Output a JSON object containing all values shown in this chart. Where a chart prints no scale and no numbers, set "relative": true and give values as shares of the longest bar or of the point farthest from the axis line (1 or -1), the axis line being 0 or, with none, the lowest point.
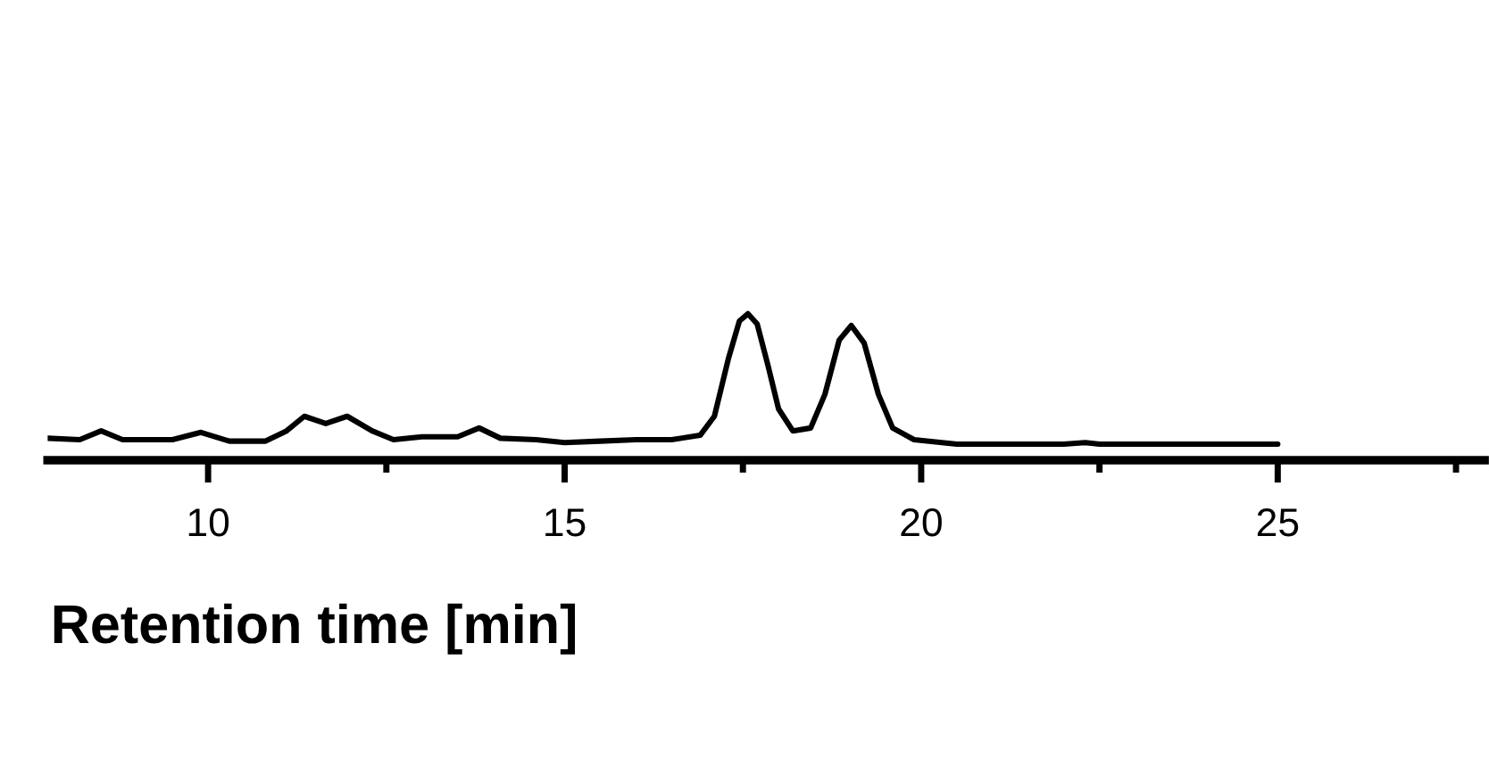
{
  "chart_data": {
    "type": "line",
    "relative": true,
    "xlabel": "Retention time [min]",
    "x": [
      7.75,
      8.2,
      8.5,
      8.8,
      9.5,
      9.9,
      10.3,
      10.8,
      11.1,
      11.35,
      11.65,
      11.95,
      12.3,
      12.6,
      13.0,
      13.5,
      13.8,
      14.1,
      14.6,
      15.0,
      15.5,
      16.0,
      16.5,
      16.9,
      17.1,
      17.3,
      17.45,
      17.57,
      17.7,
      17.85,
      18.0,
      18.2,
      18.45,
      18.65,
      18.85,
      19.02,
      19.2,
      19.4,
      19.6,
      19.9,
      20.5,
      22.0,
      22.3,
      22.5,
      25.0
    ],
    "series": [
      {
        "color": "#000000",
        "values": [
          0.15,
          0.14,
          0.2,
          0.14,
          0.14,
          0.19,
          0.13,
          0.13,
          0.2,
          0.3,
          0.25,
          0.3,
          0.2,
          0.14,
          0.16,
          0.16,
          0.22,
          0.15,
          0.14,
          0.12,
          0.13,
          0.14,
          0.14,
          0.17,
          0.3,
          0.7,
          0.95,
          1.0,
          0.93,
          0.65,
          0.35,
          0.2,
          0.22,
          0.45,
          0.82,
          0.92,
          0.8,
          0.45,
          0.22,
          0.14,
          0.11,
          0.11,
          0.12,
          0.11,
          0.11
        ]
      }
    ],
    "xlim": [
      7.75,
      27.9
    ],
    "xticks": [
      10,
      {
        "value": 12.5,
        "label": null
      },
      15,
      {
        "value": 17.5,
        "label": null
      },
      20,
      {
        "value": 22.5,
        "label": null
      },
      25,
      {
        "value": 27.5,
        "label": null
      }
    ],
    "grid": false,
    "legend": false
  }
}
